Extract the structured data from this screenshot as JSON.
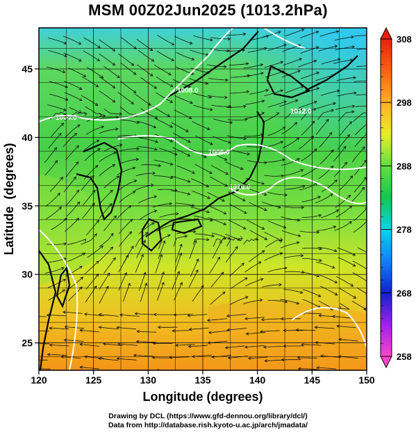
{
  "title": "MSM 00Z02Jun2025 (1013.2hPa)",
  "x_axis": {
    "label": "Longitude (degrees)",
    "range": [
      120,
      150
    ],
    "ticks": [
      120,
      125,
      130,
      135,
      140,
      145,
      150
    ]
  },
  "y_axis": {
    "label": "Latitude  (degrees)",
    "range": [
      23,
      48
    ],
    "ticks": [
      25,
      30,
      35,
      40,
      45
    ]
  },
  "colorbar": {
    "min": 258,
    "max": 308,
    "ticks": [
      258,
      268,
      278,
      288,
      298,
      308
    ],
    "colors": [
      "#ff44cc",
      "#a020f0",
      "#1020d0",
      "#1080ff",
      "#00d8e8",
      "#10c850",
      "#60e040",
      "#e8ee20",
      "#ffb020",
      "#ff6010",
      "#e82010"
    ]
  },
  "contour_labels": [
    "1004.0",
    "1008.0",
    "1012.0",
    "1016.0",
    "1008.0"
  ],
  "footer": {
    "line1": "Drawing by DCL (https://www.gfd-dennou.org/library/dcl/)",
    "line2": "Data from http://database.rish.kyoto-u.ac.jp/arch/jmadata/"
  }
}
